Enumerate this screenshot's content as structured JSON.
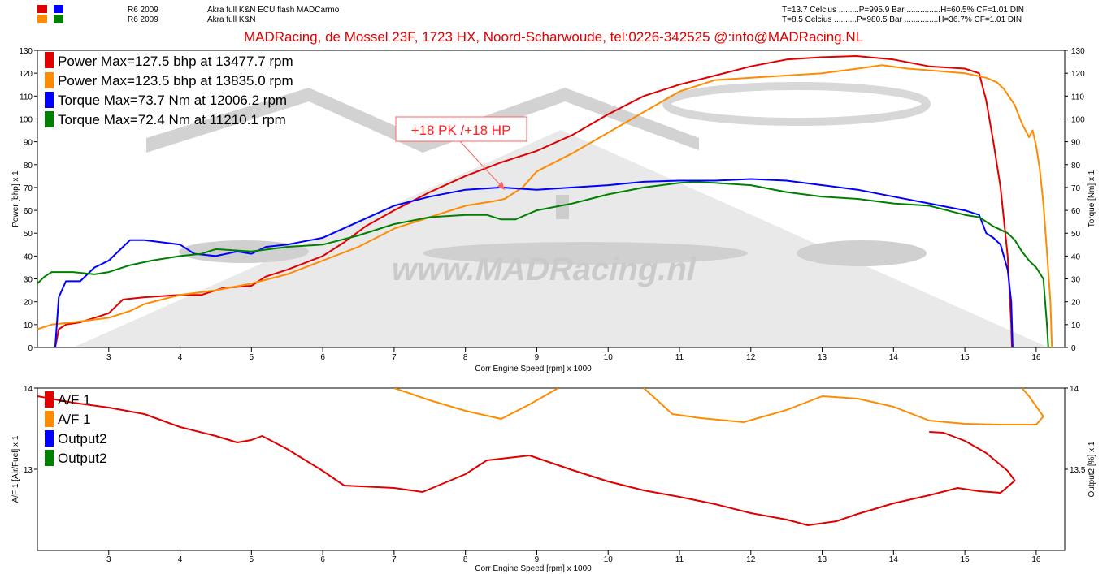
{
  "header": {
    "runs": [
      {
        "name": "R6 2009",
        "description": "Akra full K&N ECU flash MADCarmo",
        "conditions": "T=13.7 Celcius .........P=995.9 Bar ...............H=60.5% CF=1.01 DIN",
        "colors": [
          "#e00000",
          "#0000ff"
        ]
      },
      {
        "name": "R6 2009",
        "description": "Akra full K&N",
        "conditions": "T=8.5 Celcius ..........P=980.5 Bar ...............H=36.7% CF=1.01 DIN",
        "colors": [
          "#ff8c00",
          "#008000"
        ]
      }
    ],
    "banner": "MADRacing, de Mossel 23F, 1723 HX, Noord-Scharwoude,  tel:0226-342525   @:info@MADRacing.NL"
  },
  "watermark_text": "www.MADRacing.nl",
  "chart_data": [
    {
      "type": "line",
      "xlabel": "Corr Engine Speed [rpm] x 1000",
      "ylabel": "Power [bhp] x 1",
      "y2label": "Torque [Nm] x 1",
      "xlim": [
        2.0,
        16.4
      ],
      "ylim": [
        0,
        130
      ],
      "y2lim": [
        0,
        130
      ],
      "xticks": [
        3,
        4,
        5,
        6,
        7,
        8,
        9,
        10,
        11,
        12,
        13,
        14,
        15,
        16
      ],
      "yticks": [
        0,
        10,
        20,
        30,
        40,
        50,
        60,
        70,
        80,
        90,
        100,
        110,
        120,
        130
      ],
      "legend": [
        {
          "label": "Power  Max=127.5 bhp at 13477.7 rpm",
          "color": "#e00000"
        },
        {
          "label": "Power  Max=123.5 bhp at 13835.0 rpm",
          "color": "#ff8c00"
        },
        {
          "label": "Torque  Max=73.7 Nm at 12006.2 rpm",
          "color": "#0000ff"
        },
        {
          "label": "Torque  Max=72.4 Nm at 11210.1 rpm",
          "color": "#008000"
        }
      ],
      "annotation": {
        "text": "+18 PK /+18 HP",
        "x": 8.55,
        "y": 69
      },
      "series": [
        {
          "color": "#e00000",
          "axis": "left",
          "points": [
            [
              2.25,
              0
            ],
            [
              2.3,
              8
            ],
            [
              2.4,
              10
            ],
            [
              2.6,
              11
            ],
            [
              2.8,
              13
            ],
            [
              3.0,
              15
            ],
            [
              3.2,
              21
            ],
            [
              3.5,
              22
            ],
            [
              4.0,
              23
            ],
            [
              4.3,
              23
            ],
            [
              4.6,
              26
            ],
            [
              5.0,
              27
            ],
            [
              5.2,
              31
            ],
            [
              5.5,
              34
            ],
            [
              6.0,
              40
            ],
            [
              6.3,
              46
            ],
            [
              6.6,
              53
            ],
            [
              7.0,
              60
            ],
            [
              7.5,
              68
            ],
            [
              8.0,
              75
            ],
            [
              8.5,
              81
            ],
            [
              9.0,
              86
            ],
            [
              9.5,
              93
            ],
            [
              10.0,
              102
            ],
            [
              10.5,
              110
            ],
            [
              11.0,
              115
            ],
            [
              11.5,
              119
            ],
            [
              12.0,
              123
            ],
            [
              12.5,
              126
            ],
            [
              13.0,
              127
            ],
            [
              13.48,
              127.5
            ],
            [
              14.0,
              126
            ],
            [
              14.5,
              123
            ],
            [
              15.0,
              122
            ],
            [
              15.2,
              120
            ],
            [
              15.3,
              108
            ],
            [
              15.4,
              90
            ],
            [
              15.5,
              70
            ],
            [
              15.6,
              40
            ],
            [
              15.65,
              10
            ],
            [
              15.66,
              0
            ]
          ]
        },
        {
          "color": "#ff8c00",
          "axis": "left",
          "points": [
            [
              2.0,
              8
            ],
            [
              2.2,
              10
            ],
            [
              2.5,
              11
            ],
            [
              3.0,
              13
            ],
            [
              3.3,
              16
            ],
            [
              3.5,
              19
            ],
            [
              4.0,
              23
            ],
            [
              4.5,
              25
            ],
            [
              5.0,
              28
            ],
            [
              5.5,
              32
            ],
            [
              6.0,
              38
            ],
            [
              6.5,
              44
            ],
            [
              7.0,
              52
            ],
            [
              7.5,
              57
            ],
            [
              8.0,
              62
            ],
            [
              8.4,
              64
            ],
            [
              8.55,
              65
            ],
            [
              8.8,
              70
            ],
            [
              9.0,
              77
            ],
            [
              9.5,
              85
            ],
            [
              10.0,
              94
            ],
            [
              10.5,
              103
            ],
            [
              11.0,
              112
            ],
            [
              11.5,
              117
            ],
            [
              12.0,
              118
            ],
            [
              12.5,
              119
            ],
            [
              13.0,
              120
            ],
            [
              13.5,
              122
            ],
            [
              13.84,
              123.5
            ],
            [
              14.2,
              122
            ],
            [
              14.6,
              121
            ],
            [
              15.0,
              120
            ],
            [
              15.3,
              118
            ],
            [
              15.45,
              116
            ],
            [
              15.55,
              113
            ],
            [
              15.7,
              106
            ],
            [
              15.8,
              98
            ],
            [
              15.9,
              92
            ],
            [
              15.95,
              95
            ],
            [
              16.0,
              88
            ],
            [
              16.05,
              78
            ],
            [
              16.1,
              63
            ],
            [
              16.15,
              42
            ],
            [
              16.2,
              20
            ],
            [
              16.22,
              0
            ]
          ]
        },
        {
          "color": "#0000ff",
          "axis": "right",
          "points": [
            [
              2.25,
              0
            ],
            [
              2.3,
              22
            ],
            [
              2.4,
              29
            ],
            [
              2.6,
              29
            ],
            [
              2.8,
              35
            ],
            [
              3.0,
              38
            ],
            [
              3.2,
              44
            ],
            [
              3.3,
              47
            ],
            [
              3.5,
              47
            ],
            [
              4.0,
              45
            ],
            [
              4.2,
              41
            ],
            [
              4.5,
              40
            ],
            [
              4.8,
              42
            ],
            [
              5.0,
              41
            ],
            [
              5.2,
              44
            ],
            [
              5.5,
              45
            ],
            [
              6.0,
              48
            ],
            [
              6.5,
              55
            ],
            [
              7.0,
              62
            ],
            [
              7.5,
              66
            ],
            [
              8.0,
              69
            ],
            [
              8.5,
              70
            ],
            [
              9.0,
              69
            ],
            [
              9.5,
              70
            ],
            [
              10.0,
              71
            ],
            [
              10.5,
              72.5
            ],
            [
              11.0,
              73
            ],
            [
              11.5,
              73
            ],
            [
              12.0,
              73.7
            ],
            [
              12.5,
              73
            ],
            [
              13.0,
              71
            ],
            [
              13.5,
              69
            ],
            [
              14.0,
              66
            ],
            [
              14.5,
              63
            ],
            [
              15.0,
              60
            ],
            [
              15.2,
              58
            ],
            [
              15.3,
              50
            ],
            [
              15.4,
              48
            ],
            [
              15.5,
              45
            ],
            [
              15.6,
              34
            ],
            [
              15.65,
              20
            ],
            [
              15.67,
              0
            ]
          ]
        },
        {
          "color": "#008000",
          "axis": "right",
          "points": [
            [
              2.0,
              28
            ],
            [
              2.1,
              31
            ],
            [
              2.2,
              33
            ],
            [
              2.5,
              33
            ],
            [
              2.8,
              32
            ],
            [
              3.0,
              33
            ],
            [
              3.3,
              36
            ],
            [
              3.6,
              38
            ],
            [
              4.0,
              40
            ],
            [
              4.3,
              41
            ],
            [
              4.5,
              43
            ],
            [
              5.0,
              42
            ],
            [
              5.5,
              44
            ],
            [
              6.0,
              45
            ],
            [
              6.5,
              49
            ],
            [
              7.0,
              54
            ],
            [
              7.5,
              57
            ],
            [
              8.0,
              58
            ],
            [
              8.3,
              58
            ],
            [
              8.5,
              56
            ],
            [
              8.7,
              56
            ],
            [
              9.0,
              60
            ],
            [
              9.5,
              63
            ],
            [
              10.0,
              67
            ],
            [
              10.5,
              70
            ],
            [
              11.0,
              72
            ],
            [
              11.21,
              72.4
            ],
            [
              11.5,
              72
            ],
            [
              12.0,
              71
            ],
            [
              12.5,
              68
            ],
            [
              13.0,
              66
            ],
            [
              13.5,
              65
            ],
            [
              14.0,
              63
            ],
            [
              14.5,
              62
            ],
            [
              15.0,
              58
            ],
            [
              15.2,
              57
            ],
            [
              15.4,
              53
            ],
            [
              15.6,
              50
            ],
            [
              15.7,
              47
            ],
            [
              15.8,
              42
            ],
            [
              15.9,
              38
            ],
            [
              16.0,
              35
            ],
            [
              16.1,
              30
            ],
            [
              16.15,
              10
            ],
            [
              16.17,
              0
            ]
          ]
        }
      ]
    },
    {
      "type": "line",
      "xlabel": "Corr Engine Speed [rpm] x 1000",
      "ylabel": "A/F 1 [Air/Fuel] x 1",
      "y2label": "Output2 [%] x 1",
      "xlim": [
        2.0,
        16.4
      ],
      "ylim": [
        12.0,
        14.0
      ],
      "xticks": [
        3,
        4,
        5,
        6,
        7,
        8,
        9,
        10,
        11,
        12,
        13,
        14,
        15,
        16
      ],
      "yticks_left": [
        "13",
        "14"
      ],
      "yticks_right": [
        "13.5",
        "14"
      ],
      "legend": [
        {
          "label": "A/F 1",
          "color": "#e00000"
        },
        {
          "label": "A/F 1",
          "color": "#ff8c00"
        },
        {
          "label": "Output2",
          "color": "#0000ff"
        },
        {
          "label": "Output2",
          "color": "#008000"
        }
      ],
      "series": [
        {
          "color": "#e00000",
          "axis": "left",
          "points": [
            [
              2.0,
              13.9
            ],
            [
              2.5,
              13.82
            ],
            [
              3.0,
              13.76
            ],
            [
              3.5,
              13.68
            ],
            [
              4.0,
              13.52
            ],
            [
              4.5,
              13.41
            ],
            [
              4.8,
              13.33
            ],
            [
              5.0,
              13.36
            ],
            [
              5.15,
              13.41
            ],
            [
              5.5,
              13.25
            ],
            [
              6.0,
              12.98
            ],
            [
              6.3,
              12.8
            ],
            [
              7.0,
              12.77
            ],
            [
              7.4,
              12.72
            ],
            [
              8.0,
              12.94
            ],
            [
              8.3,
              13.11
            ],
            [
              8.9,
              13.17
            ],
            [
              9.2,
              13.08
            ],
            [
              9.5,
              12.99
            ],
            [
              10.0,
              12.85
            ],
            [
              10.5,
              12.74
            ],
            [
              11.0,
              12.66
            ],
            [
              11.5,
              12.57
            ],
            [
              12.0,
              12.46
            ],
            [
              12.5,
              12.38
            ],
            [
              12.8,
              12.31
            ],
            [
              13.2,
              12.36
            ],
            [
              13.5,
              12.45
            ],
            [
              14.0,
              12.58
            ],
            [
              14.5,
              12.68
            ],
            [
              14.9,
              12.77
            ],
            [
              15.2,
              12.73
            ],
            [
              15.5,
              12.71
            ],
            [
              15.7,
              12.86
            ],
            [
              15.6,
              12.98
            ],
            [
              15.3,
              13.2
            ],
            [
              15.0,
              13.35
            ],
            [
              14.7,
              13.45
            ],
            [
              14.5,
              13.46
            ]
          ]
        },
        {
          "color": "#ff8c00",
          "axis": "left",
          "points": [
            [
              7.0,
              14.0
            ],
            [
              7.5,
              13.85
            ],
            [
              8.0,
              13.72
            ],
            [
              8.5,
              13.62
            ],
            [
              8.9,
              13.8
            ],
            [
              9.3,
              14.0
            ]
          ],
          "points2": [
            [
              10.5,
              14.0
            ],
            [
              10.9,
              13.68
            ],
            [
              11.3,
              13.63
            ],
            [
              11.9,
              13.58
            ],
            [
              12.5,
              13.73
            ],
            [
              13.0,
              13.9
            ],
            [
              13.5,
              13.87
            ],
            [
              14.0,
              13.77
            ],
            [
              14.5,
              13.6
            ],
            [
              15.0,
              13.56
            ],
            [
              15.5,
              13.55
            ],
            [
              16.0,
              13.55
            ],
            [
              16.1,
              13.65
            ],
            [
              15.9,
              13.9
            ],
            [
              15.8,
              14.0
            ]
          ]
        }
      ]
    }
  ]
}
